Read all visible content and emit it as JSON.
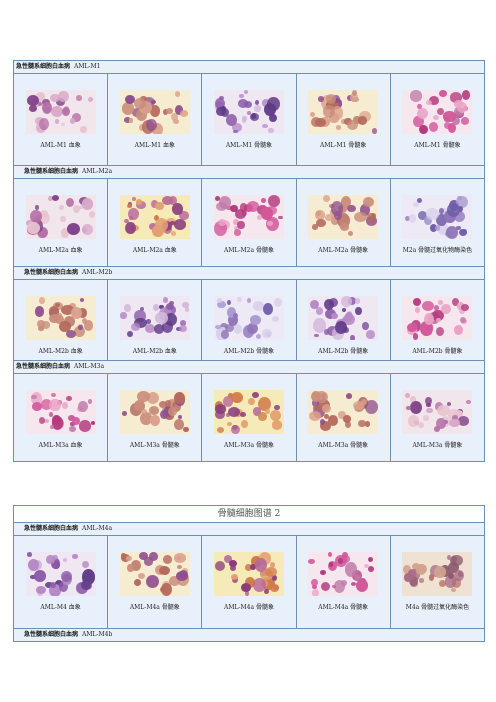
{
  "page1": {
    "sections": [
      {
        "title": "急性髓系细胞白血病",
        "code": "AML-M1",
        "panels": [
          {
            "caption": "AML-M1 血象",
            "icon": "blood-smear-image"
          },
          {
            "caption": "AML-M1 血象",
            "icon": "blood-smear-image"
          },
          {
            "caption": "AML-M1 骨髓象",
            "icon": "bone-marrow-image"
          },
          {
            "caption": "AML-M1 骨髓象",
            "icon": "bone-marrow-image"
          },
          {
            "caption": "AML-M1 骨髓象",
            "icon": "bone-marrow-image"
          }
        ]
      },
      {
        "title": "急性髓系细胞白血病",
        "code": "AML-M2a",
        "panels": [
          {
            "caption": "AML-M2a 血象",
            "icon": "blood-smear-image"
          },
          {
            "caption": "AML-M2a 血象",
            "icon": "blood-smear-image"
          },
          {
            "caption": "AML-M2a 骨髓象",
            "icon": "bone-marrow-image"
          },
          {
            "caption": "AML-M2a 骨髓象",
            "icon": "bone-marrow-image"
          },
          {
            "caption": "M2a 骨髓过氧化物酶染色",
            "icon": "stain-image"
          }
        ]
      },
      {
        "title": "急性髓系细胞白血病",
        "code": "AML-M2b",
        "panels": [
          {
            "caption": "AML-M2b 血象",
            "icon": "blood-smear-image"
          },
          {
            "caption": "AML-M2b 血象",
            "icon": "blood-smear-image"
          },
          {
            "caption": "AML-M2b 骨髓象",
            "icon": "bone-marrow-image"
          },
          {
            "caption": "AML-M2b 骨髓象",
            "icon": "bone-marrow-image"
          },
          {
            "caption": "AML-M2b 骨髓象",
            "icon": "bone-marrow-image"
          }
        ]
      },
      {
        "title": "急性髓系细胞白血病",
        "code": "AML-M3a",
        "panels": [
          {
            "caption": "AML-M3a 血象",
            "icon": "blood-smear-image"
          },
          {
            "caption": "AML-M3a 骨髓象",
            "icon": "bone-marrow-image"
          },
          {
            "caption": "AML-M3a 骨髓象",
            "icon": "bone-marrow-image"
          },
          {
            "caption": "AML-M3a 骨髓象",
            "icon": "bone-marrow-image"
          },
          {
            "caption": "AML-M3a 骨髓象",
            "icon": "bone-marrow-image"
          }
        ]
      }
    ]
  },
  "page2": {
    "title": "骨髓细胞图谱 2",
    "sections": [
      {
        "title": "急性髓系细胞白血病",
        "code": "AML-M4a",
        "panels": [
          {
            "caption": "AML-M4 血象",
            "icon": "blood-smear-image"
          },
          {
            "caption": "AML-M4a 骨髓象",
            "icon": "bone-marrow-image"
          },
          {
            "caption": "AML-M4a 骨髓象",
            "icon": "bone-marrow-image"
          },
          {
            "caption": "AML-M4a 骨髓象",
            "icon": "bone-marrow-image"
          },
          {
            "caption": "M4a 骨髓过氧化酶染色",
            "icon": "stain-image"
          }
        ]
      },
      {
        "title": "急性髓系细胞白血病",
        "code": "AML-M4b",
        "panels": []
      }
    ]
  }
}
